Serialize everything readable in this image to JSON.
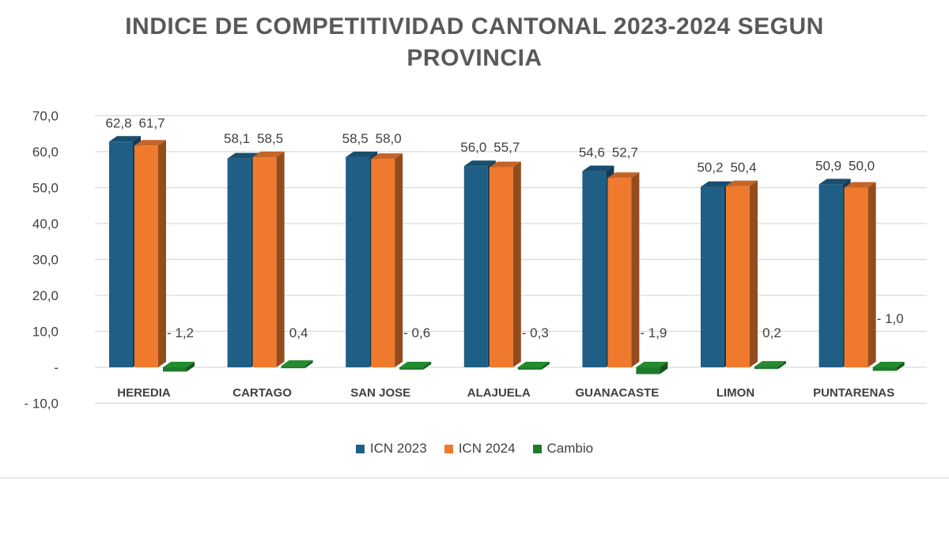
{
  "chart_data": {
    "type": "bar",
    "title_lines": [
      "INDICE DE COMPETITIVIDAD CANTONAL 2023-2024 SEGUN",
      "PROVINCIA"
    ],
    "categories": [
      "HEREDIA",
      "CARTAGO",
      "SAN JOSE",
      "ALAJUELA",
      "GUANACASTE",
      "LIMON",
      "PUNTARENAS"
    ],
    "series": [
      {
        "name": "ICN 2023",
        "color": "#1f5f86",
        "values": [
          62.8,
          58.1,
          58.5,
          56.0,
          54.6,
          50.2,
          50.9
        ],
        "labels": [
          "62,8",
          "58,1",
          "58,5",
          "56,0",
          "54,6",
          "50,2",
          "50,9"
        ]
      },
      {
        "name": "ICN 2024",
        "color": "#ef7a2e",
        "values": [
          61.7,
          58.5,
          58.0,
          55.7,
          52.7,
          50.4,
          50.0
        ],
        "labels": [
          "61,7",
          "58,5",
          "58,0",
          "55,7",
          "52,7",
          "50,4",
          "50,0"
        ]
      },
      {
        "name": "Cambio",
        "color": "#1e7a2a",
        "values": [
          -1.2,
          0.4,
          -0.6,
          -0.3,
          -1.9,
          0.2,
          -1.0
        ],
        "labels": [
          "- 1,2",
          "0,4",
          "- 0,6",
          "- 0,3",
          "- 1,9",
          "0,2",
          "- 1,0"
        ]
      }
    ],
    "ylim": [
      -10,
      70
    ],
    "yticks": [
      70,
      60,
      50,
      40,
      30,
      20,
      10,
      0,
      -10
    ],
    "ytick_labels": [
      "70,0",
      "60,0",
      "50,0",
      "40,0",
      "30,0",
      "20,0",
      "10,0",
      "-",
      "- 10,0"
    ],
    "grid": true,
    "legend_position": "bottom"
  }
}
